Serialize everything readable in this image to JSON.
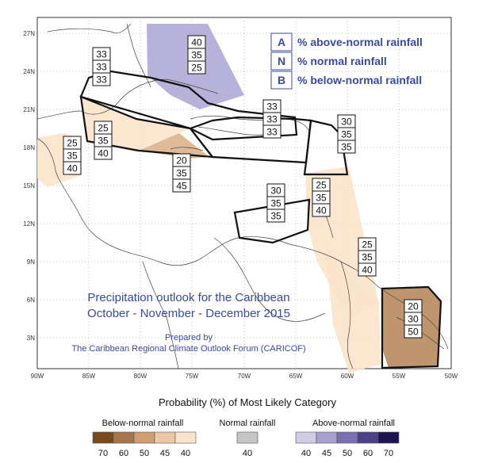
{
  "map": {
    "title_line1": "Precipitation outlook for the Caribbean",
    "title_line2": "October - November - December 2015",
    "prepared_line1": "Prepared by",
    "prepared_line2": "The Caribbean Regional Climate Outlook Forum (CARICOF)",
    "lon_labels": [
      "90W",
      "85W",
      "80W",
      "75W",
      "70W",
      "65W",
      "60W",
      "55W",
      "50W"
    ],
    "lat_labels": [
      "27N",
      "24N",
      "21N",
      "18N",
      "15N",
      "12N",
      "9N",
      "6N",
      "3N"
    ]
  },
  "key": {
    "items": [
      {
        "letter": "A",
        "text": "% above-normal rainfall"
      },
      {
        "letter": "N",
        "text": "% normal rainfall"
      },
      {
        "letter": "B",
        "text": "% below-normal rainfall"
      }
    ]
  },
  "regions": [
    {
      "name": "northwest-caribbean",
      "values": [
        "33",
        "33",
        "33"
      ]
    },
    {
      "name": "bahamas",
      "values": [
        "40",
        "35",
        "25"
      ]
    },
    {
      "name": "belize-yucatan",
      "values": [
        "25",
        "35",
        "40"
      ]
    },
    {
      "name": "jamaica-cayman",
      "values": [
        "25",
        "35",
        "40"
      ]
    },
    {
      "name": "southwest-jamaica",
      "values": [
        "20",
        "35",
        "45"
      ]
    },
    {
      "name": "greater-antilles",
      "values": [
        "33",
        "33",
        "33"
      ]
    },
    {
      "name": "leeward-islands",
      "values": [
        "30",
        "35",
        "35"
      ]
    },
    {
      "name": "windward-islands",
      "values": [
        "25",
        "35",
        "40"
      ]
    },
    {
      "name": "abc-islands",
      "values": [
        "30",
        "35",
        "35"
      ]
    },
    {
      "name": "guyana",
      "values": [
        "25",
        "35",
        "40"
      ]
    },
    {
      "name": "suriname-french-guiana",
      "values": [
        "20",
        "30",
        "50"
      ]
    }
  ],
  "legend": {
    "title": "Probability (%) of Most Likely Category",
    "below_label": "Below-normal rainfall",
    "normal_label": "Normal rainfall",
    "above_label": "Above-normal rainfall",
    "below_ticks": [
      "70",
      "60",
      "50",
      "45",
      "40"
    ],
    "normal_ticks": [
      "40"
    ],
    "above_ticks": [
      "40",
      "45",
      "50",
      "60",
      "70"
    ],
    "below_colors": [
      "#7a4a1e",
      "#a8764e",
      "#cf9f73",
      "#ecc9a4",
      "#fbe3cb"
    ],
    "normal_colors": [
      "#c4c4c4"
    ],
    "above_colors": [
      "#cfcbe6",
      "#a7a1d0",
      "#7a70b0",
      "#4d4288",
      "#1c1450"
    ]
  }
}
